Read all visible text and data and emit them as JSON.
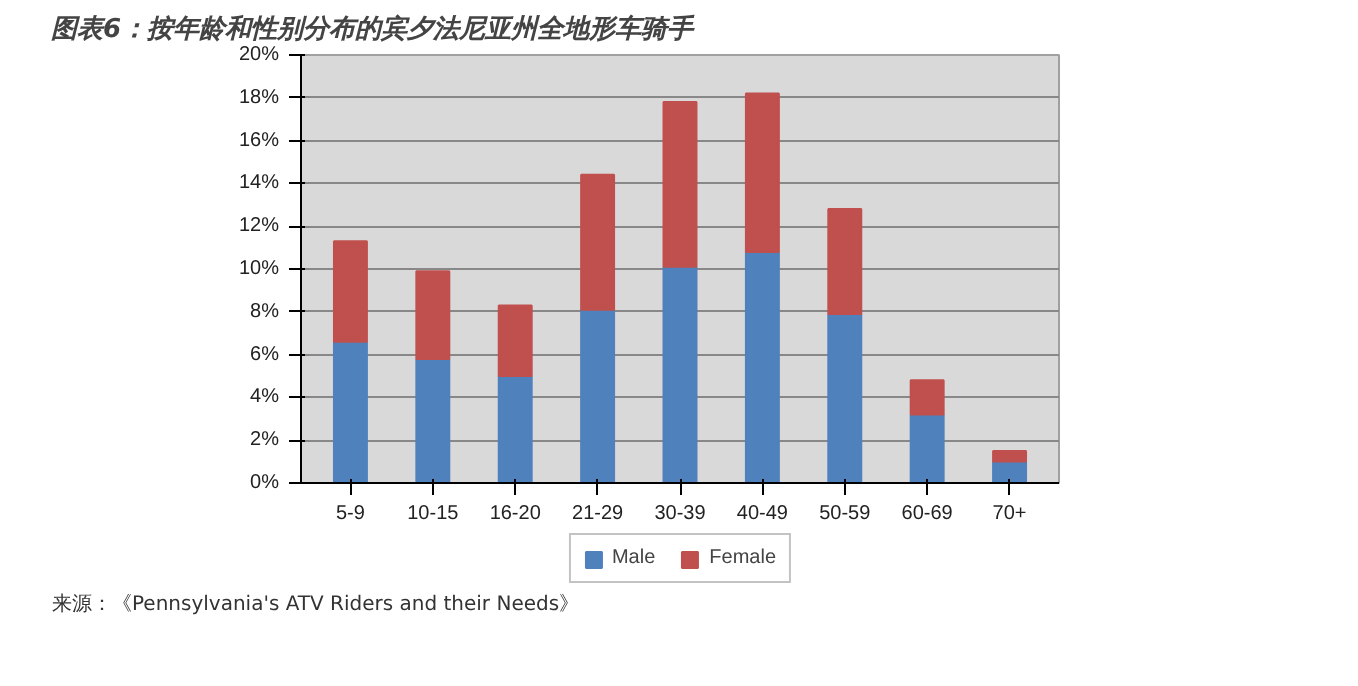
{
  "chart_data": {
    "type": "bar",
    "title": "图表6：按年龄和性别分布的宾夕法尼亚州全地形车骑手",
    "categories": [
      "5-9",
      "10-15",
      "16-20",
      "21-29",
      "30-39",
      "40-49",
      "50-59",
      "60-69",
      "70+"
    ],
    "stacked": true,
    "series": [
      {
        "name": "Male",
        "color": "#4f81bd",
        "values": [
          6.6,
          5.8,
          5.0,
          8.1,
          10.1,
          10.8,
          7.9,
          3.2,
          1.0
        ]
      },
      {
        "name": "Female",
        "color": "#c0504d",
        "values": [
          4.7,
          4.1,
          3.3,
          6.3,
          7.7,
          7.4,
          4.9,
          1.6,
          0.5
        ]
      }
    ],
    "ylim": [
      0,
      20
    ],
    "yticks": [
      {
        "value": 0,
        "label": "0%"
      },
      {
        "value": 2,
        "label": "2%"
      },
      {
        "value": 4,
        "label": "4%"
      },
      {
        "value": 6,
        "label": "6%"
      },
      {
        "value": 8,
        "label": "8%"
      },
      {
        "value": 10,
        "label": "10%"
      },
      {
        "value": 12,
        "label": "12%"
      },
      {
        "value": 14,
        "label": "14%"
      },
      {
        "value": 16,
        "label": "16%"
      },
      {
        "value": 18,
        "label": "18%"
      },
      {
        "value": 20,
        "label": "20%"
      }
    ],
    "grid": "y",
    "legend": "bottom",
    "annotations": [
      "来源：《Pennsylvania's ATV Riders and their Needs》"
    ]
  }
}
